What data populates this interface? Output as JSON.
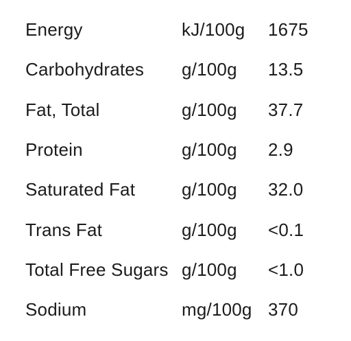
{
  "table": {
    "rows": [
      [
        "Energy",
        "kJ/100g",
        "1675"
      ],
      [
        "Carbohydrates",
        "g/100g",
        "13.5"
      ],
      [
        "Fat, Total",
        "g/100g",
        "37.7"
      ],
      [
        "Protein",
        "g/100g",
        "2.9"
      ],
      [
        "Saturated Fat",
        "g/100g",
        "32.0"
      ],
      [
        "Trans Fat",
        "g/100g",
        "<0.1"
      ],
      [
        "Total Free Sugars",
        "g/100g",
        "<1.0"
      ],
      [
        "Sodium",
        "mg/100g",
        "370"
      ]
    ]
  }
}
